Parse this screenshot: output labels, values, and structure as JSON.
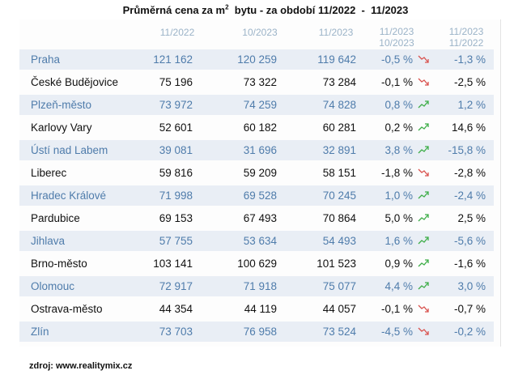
{
  "title": {
    "text": "Průměrná cena za m",
    "superscript": "2",
    "rest": "  bytu - za období 11/2022  -  11/2023"
  },
  "headers": {
    "h1": "11/2022",
    "h2": "10/2023",
    "h3": "11/2023",
    "h4_top": "11/2023",
    "h4_bottom": "10/2023",
    "h5_top": "11/2023",
    "h5_bottom": "11/2022"
  },
  "rows": [
    {
      "city": "Praha",
      "v1": "121 162",
      "v2": "120 259",
      "v3": "119 642",
      "ch1": "-0,5 %",
      "trend": "down",
      "ch2": "-1,3 %"
    },
    {
      "city": "České Budějovice",
      "v1": "75 196",
      "v2": "73 322",
      "v3": "73 284",
      "ch1": "-0,1 %",
      "trend": "down",
      "ch2": "-2,5 %"
    },
    {
      "city": "Plzeň-město",
      "v1": "73 972",
      "v2": "74 259",
      "v3": "74 828",
      "ch1": "0,8 %",
      "trend": "up",
      "ch2": "1,2 %"
    },
    {
      "city": "Karlovy Vary",
      "v1": "52 601",
      "v2": "60 182",
      "v3": "60 281",
      "ch1": "0,2 %",
      "trend": "up",
      "ch2": "14,6 %"
    },
    {
      "city": "Ústí nad Labem",
      "v1": "39 081",
      "v2": "31 696",
      "v3": "32 891",
      "ch1": "3,8 %",
      "trend": "up",
      "ch2": "-15,8 %"
    },
    {
      "city": "Liberec",
      "v1": "59 816",
      "v2": "59 209",
      "v3": "58 151",
      "ch1": "-1,8 %",
      "trend": "down",
      "ch2": "-2,8 %"
    },
    {
      "city": "Hradec Králové",
      "v1": "71 998",
      "v2": "69 528",
      "v3": "70 245",
      "ch1": "1,0 %",
      "trend": "up",
      "ch2": "-2,4 %"
    },
    {
      "city": "Pardubice",
      "v1": "69 153",
      "v2": "67 493",
      "v3": "70 864",
      "ch1": "5,0 %",
      "trend": "up",
      "ch2": "2,5 %"
    },
    {
      "city": "Jihlava",
      "v1": "57 755",
      "v2": "53 634",
      "v3": "54 493",
      "ch1": "1,6 %",
      "trend": "up",
      "ch2": "-5,6 %"
    },
    {
      "city": "Brno-město",
      "v1": "103 141",
      "v2": "100 629",
      "v3": "101 523",
      "ch1": "0,9 %",
      "trend": "up",
      "ch2": "-1,6 %"
    },
    {
      "city": "Olomouc",
      "v1": "72 917",
      "v2": "71 918",
      "v3": "75 077",
      "ch1": "4,4 %",
      "trend": "up",
      "ch2": "3,0 %"
    },
    {
      "city": "Ostrava-město",
      "v1": "44 354",
      "v2": "44 119",
      "v3": "44 057",
      "ch1": "-0,1 %",
      "trend": "down",
      "ch2": "-0,7 %"
    },
    {
      "city": "Zlín",
      "v1": "73 703",
      "v2": "76 958",
      "v3": "73 524",
      "ch1": "-4,5 %",
      "trend": "down",
      "ch2": "-0,2 %"
    }
  ],
  "colors": {
    "trend_up": "#3fae49",
    "trend_down": "#d9534f",
    "row_alt_bg": "#e9eef5",
    "row_alt_text": "#4f7cab",
    "header_text": "#9bb3c8"
  },
  "footer": "zdroj:  www.realitymix.cz"
}
